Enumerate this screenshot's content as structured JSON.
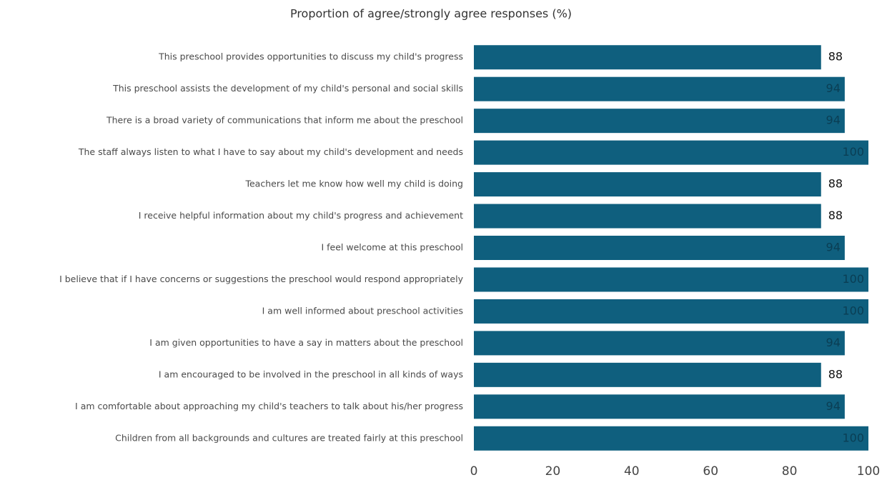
{
  "chart_data": {
    "type": "bar",
    "orientation": "horizontal",
    "title": "Proportion of agree/strongly agree responses (%)",
    "categories": [
      "This preschool provides opportunities to discuss my child's progress",
      "This preschool assists the development of my child's personal and social skills",
      "There is a broad variety of communications that inform me about the preschool",
      "The staff always listen to what I have to say about my child's development and needs",
      "Teachers let me know how well my child is doing",
      "I receive helpful information about my child's progress and achievement",
      "I feel welcome at this preschool",
      "I believe that if I have concerns or suggestions the preschool would respond appropriately",
      "I am well informed about preschool activities",
      "I am given opportunities to have a say in matters about the preschool",
      "I am encouraged to be involved in the preschool in all kinds of ways",
      "I am comfortable about approaching my child's teachers to talk about his/her progress",
      "Children from all backgrounds and cultures are treated fairly at this preschool"
    ],
    "values": [
      88,
      94,
      94,
      100,
      88,
      88,
      94,
      100,
      100,
      94,
      88,
      94,
      100
    ],
    "color": "#0f5f7e",
    "xlim": [
      0,
      100
    ],
    "xticks": [
      0,
      20,
      40,
      60,
      80,
      100
    ],
    "grid": false
  }
}
